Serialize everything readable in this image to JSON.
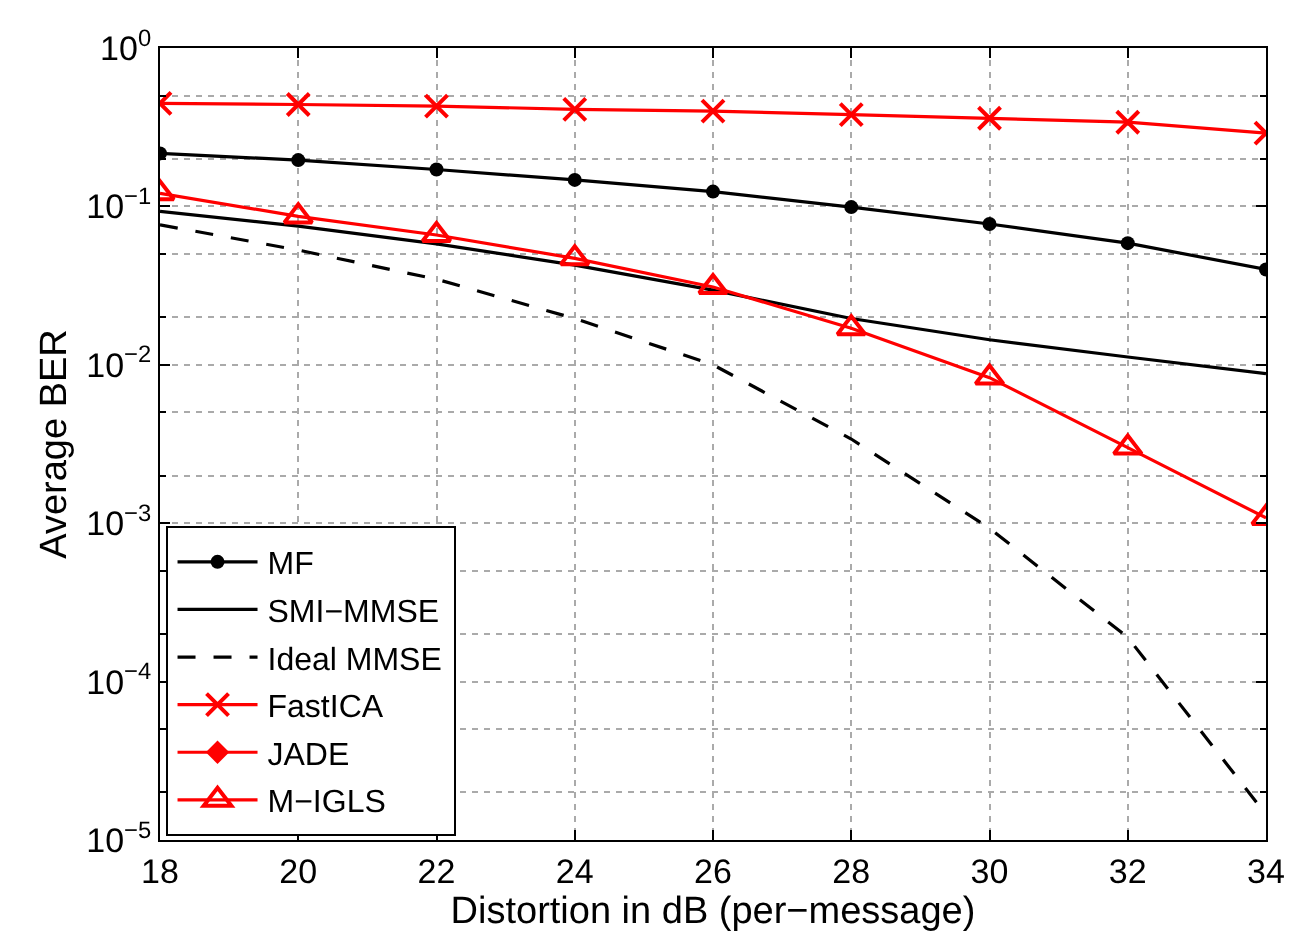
{
  "chart_data": {
    "type": "line",
    "xlabel": "Distortion in dB (per−message)",
    "ylabel": "Average BER",
    "x": [
      18,
      20,
      22,
      24,
      26,
      28,
      30,
      32,
      34
    ],
    "series": [
      {
        "name": "MF",
        "color": "#000000",
        "marker": "circle",
        "line_style": "solid",
        "values": [
          0.216,
          0.196,
          0.171,
          0.147,
          0.124,
          0.099,
          0.0774,
          0.0586,
          0.04
        ]
      },
      {
        "name": "SMI−MMSE",
        "color": "#000000",
        "marker": "none",
        "line_style": "solid",
        "values": [
          0.093,
          0.075,
          0.058,
          0.0426,
          0.0296,
          0.0196,
          0.0144,
          0.0112,
          0.0088
        ]
      },
      {
        "name": "Ideal MMSE",
        "color": "#000000",
        "marker": "none",
        "line_style": "dashed",
        "values": [
          0.0765,
          0.053,
          0.0347,
          0.0196,
          0.01,
          0.0034,
          0.00093,
          0.00019,
          1.45e-05
        ]
      },
      {
        "name": "FastICA",
        "color": "#ff0000",
        "marker": "cross",
        "line_style": "solid",
        "values": [
          0.447,
          0.44,
          0.43,
          0.41,
          0.4,
          0.38,
          0.36,
          0.34,
          0.29
        ]
      },
      {
        "name": "JADE",
        "color": "#ff0000",
        "marker": "diamond",
        "line_style": "solid",
        "values": [
          null,
          null,
          null,
          null,
          null,
          null,
          null,
          null,
          null
        ]
      },
      {
        "name": "M−IGLS",
        "color": "#ff0000",
        "marker": "triangle",
        "line_style": "solid",
        "values": [
          0.121,
          0.0865,
          0.066,
          0.047,
          0.031,
          0.017,
          0.0083,
          0.003,
          0.00108
        ]
      }
    ],
    "xlim": [
      18,
      34
    ],
    "xticks": [
      18,
      20,
      22,
      24,
      26,
      28,
      30,
      32,
      34
    ],
    "log": "y",
    "ylim": [
      1e-05,
      1
    ],
    "yticks": [
      {
        "value": 1e-05,
        "label": "10$^{−5}$"
      },
      {
        "value": 0.0001,
        "label": "10$^{−4}$"
      },
      {
        "value": 0.001,
        "label": "10$^{−3}$"
      },
      {
        "value": 0.01,
        "label": "10$^{−2}$"
      },
      {
        "value": 0.1,
        "label": "10$^{−1}$"
      },
      {
        "value": 1,
        "label": "10$^{0}$"
      }
    ],
    "grid": true,
    "legend": "bottom left"
  }
}
